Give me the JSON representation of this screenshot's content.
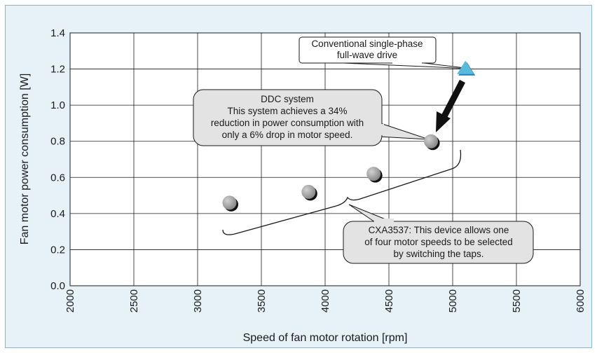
{
  "chart_data": {
    "type": "scatter",
    "xlabel": "Speed of fan motor rotation [rpm]",
    "ylabel": "Fan motor power consumption [W]",
    "xlim": [
      2000,
      6000
    ],
    "ylim": [
      0.0,
      1.4
    ],
    "x_ticks": [
      "2000",
      "2500",
      "3000",
      "3500",
      "4000",
      "4500",
      "5000",
      "5500",
      "6000"
    ],
    "y_ticks": [
      "0.0",
      "0.2",
      "0.4",
      "0.6",
      "0.8",
      "1.0",
      "1.2",
      "1.4"
    ],
    "grid": true,
    "series": [
      {
        "name": "CXA3537",
        "marker": "circle",
        "color": "#9a9a9a",
        "points": [
          {
            "x": 3250,
            "y": 0.46
          },
          {
            "x": 3870,
            "y": 0.52
          },
          {
            "x": 4380,
            "y": 0.62
          },
          {
            "x": 4830,
            "y": 0.8
          }
        ]
      },
      {
        "name": "Conventional single-phase full-wave drive",
        "marker": "triangle",
        "color": "#5ab9dc",
        "points": [
          {
            "x": 5100,
            "y": 1.2
          }
        ]
      }
    ],
    "annotations": [
      {
        "id": "conventional",
        "lines": [
          "Conventional single-phase",
          "full-wave drive"
        ]
      },
      {
        "id": "ddc",
        "lines": [
          "DDC system",
          "This system achieves a 34%",
          "reduction in power consumption with",
          "only a 6% drop in motor speed."
        ]
      },
      {
        "id": "cxa",
        "lines": [
          "CXA3537: This device allows one",
          "of four motor speeds to be selected",
          "by switching the taps."
        ]
      }
    ]
  },
  "colors": {
    "frame_bg": "#e6f1f8",
    "frame_border": "#8fb3cc",
    "plot_bg": "#ffffff",
    "grid": "#1a1a1a",
    "callout_fill": "#e3e3e3",
    "arrow": "#111111"
  }
}
